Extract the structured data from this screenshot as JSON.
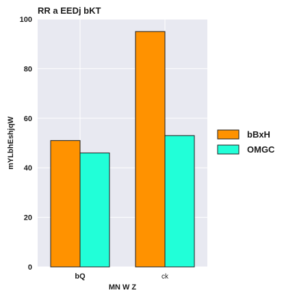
{
  "chart_data": {
    "type": "bar",
    "title": "RR a EEDj bKT",
    "xlabel": "MN W Z",
    "ylabel": "mYLbhEshjqW",
    "categories": [
      "bQ",
      "ck"
    ],
    "series": [
      {
        "name": "bBxH",
        "values": [
          51,
          95
        ]
      },
      {
        "name": "OMGC",
        "values": [
          46,
          53
        ]
      }
    ],
    "ylim": [
      0,
      100
    ],
    "yticks": [
      0,
      20,
      40,
      60,
      80,
      100
    ],
    "grid": true,
    "legend_position": "right"
  },
  "colors": {
    "bBxH": "#ff9200",
    "OMGC": "#21ffd8",
    "plot_background": "#e8e9f1",
    "grid": "#ffffff"
  }
}
